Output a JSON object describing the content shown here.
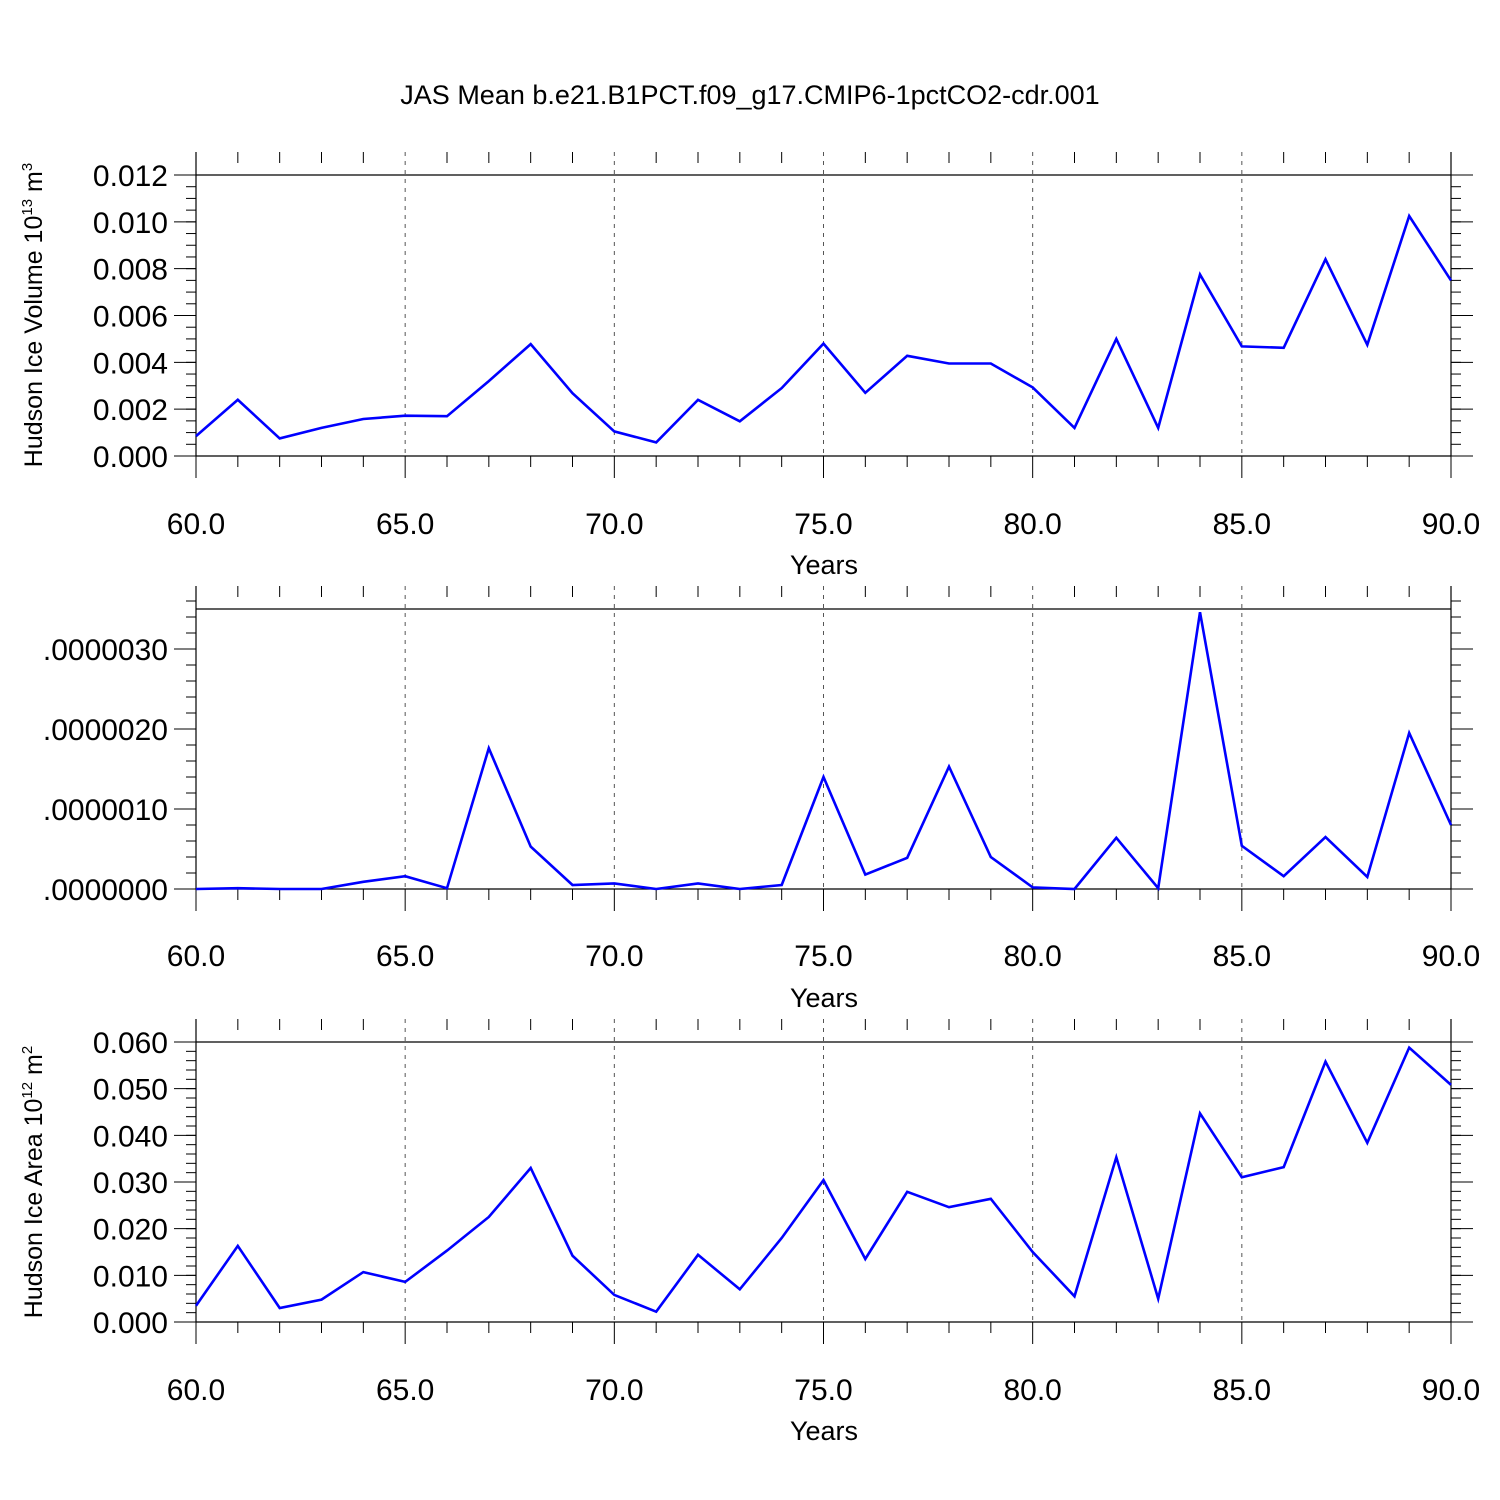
{
  "figure_title": "JAS Mean b.e21.B1PCT.f09_g17.CMIP6-1pctCO2-cdr.001",
  "colors": {
    "series": "#0000ff",
    "axes": "#000000",
    "grid": "#555555"
  },
  "chart_data": [
    {
      "type": "line",
      "xlabel": "Years",
      "ylabel": "Hudson Ice Volume 10",
      "ylabel_sup": "13",
      "ylabel_unit": " m",
      "ylabel_unit_sup": "3",
      "xlim": [
        60,
        90
      ],
      "ylim": [
        0.0,
        0.012
      ],
      "x_ticks": [
        60,
        65,
        70,
        75,
        80,
        85,
        90
      ],
      "x_tick_labels": [
        "60.0",
        "65.0",
        "70.0",
        "75.0",
        "80.0",
        "85.0",
        "90.0"
      ],
      "y_ticks": [
        0.0,
        0.002,
        0.004,
        0.006,
        0.008,
        0.01,
        0.012
      ],
      "y_tick_labels": [
        "0.000",
        "0.002",
        "0.004",
        "0.006",
        "0.008",
        "0.010",
        "0.012"
      ],
      "x_minor_step": 1,
      "y_minor_step": 0.0005,
      "grid": "vertical dashed at major x ticks",
      "x": [
        60,
        61,
        62,
        63,
        64,
        65,
        66,
        67,
        68,
        69,
        70,
        71,
        72,
        73,
        74,
        75,
        76,
        77,
        78,
        79,
        80,
        81,
        82,
        83,
        84,
        85,
        86,
        87,
        88,
        89,
        90
      ],
      "values": [
        0.00085,
        0.0024,
        0.00075,
        0.0012,
        0.00158,
        0.00172,
        0.0017,
        0.0032,
        0.00478,
        0.00268,
        0.00105,
        0.00058,
        0.0024,
        0.00148,
        0.0029,
        0.0048,
        0.0027,
        0.00428,
        0.00395,
        0.00395,
        0.00293,
        0.0012,
        0.005,
        0.0012,
        0.00775,
        0.00468,
        0.00462,
        0.0084,
        0.00475,
        0.01025,
        0.0075
      ]
    },
    {
      "type": "line",
      "xlabel": "Years",
      "ylabel": "",
      "xlim": [
        60,
        90
      ],
      "ylim": [
        0.0,
        3.5e-06
      ],
      "x_ticks": [
        60,
        65,
        70,
        75,
        80,
        85,
        90
      ],
      "x_tick_labels": [
        "60.0",
        "65.0",
        "70.0",
        "75.0",
        "80.0",
        "85.0",
        "90.0"
      ],
      "y_ticks": [
        0.0,
        1e-06,
        2e-06,
        3e-06
      ],
      "y_tick_labels": [
        ".0000000",
        ".0000010",
        ".0000020",
        ".0000030"
      ],
      "x_minor_step": 1,
      "y_minor_step": 2e-07,
      "grid": "vertical dashed at major x ticks",
      "x": [
        60,
        61,
        62,
        63,
        64,
        65,
        66,
        67,
        68,
        69,
        70,
        71,
        72,
        73,
        74,
        75,
        76,
        77,
        78,
        79,
        80,
        81,
        82,
        83,
        84,
        85,
        86,
        87,
        88,
        89,
        90
      ],
      "values": [
        0.0,
        1e-08,
        0.0,
        0.0,
        9e-08,
        1.6e-07,
        1e-08,
        1.76e-06,
        5.3e-07,
        5e-08,
        7e-08,
        0.0,
        7e-08,
        0.0,
        5e-08,
        1.4e-06,
        1.8e-07,
        3.9e-07,
        1.53e-06,
        4e-07,
        2e-08,
        0.0,
        6.4e-07,
        1e-08,
        3.46e-06,
        5.4e-07,
        1.6e-07,
        6.5e-07,
        1.5e-07,
        1.95e-06,
        8e-07
      ]
    },
    {
      "type": "line",
      "xlabel": "Years",
      "ylabel": "Hudson Ice Area 10",
      "ylabel_sup": "12",
      "ylabel_unit": " m",
      "ylabel_unit_sup": "2",
      "xlim": [
        60,
        90
      ],
      "ylim": [
        0.0,
        0.06
      ],
      "x_ticks": [
        60,
        65,
        70,
        75,
        80,
        85,
        90
      ],
      "x_tick_labels": [
        "60.0",
        "65.0",
        "70.0",
        "75.0",
        "80.0",
        "85.0",
        "90.0"
      ],
      "y_ticks": [
        0.0,
        0.01,
        0.02,
        0.03,
        0.04,
        0.05,
        0.06
      ],
      "y_tick_labels": [
        "0.000",
        "0.010",
        "0.020",
        "0.030",
        "0.040",
        "0.050",
        "0.060"
      ],
      "x_minor_step": 1,
      "y_minor_step": 0.002,
      "grid": "vertical dashed at major x ticks",
      "x": [
        60,
        61,
        62,
        63,
        64,
        65,
        66,
        67,
        68,
        69,
        70,
        71,
        72,
        73,
        74,
        75,
        76,
        77,
        78,
        79,
        80,
        81,
        82,
        83,
        84,
        85,
        86,
        87,
        88,
        89,
        90
      ],
      "values": [
        0.0035,
        0.0163,
        0.003,
        0.0048,
        0.0107,
        0.0086,
        0.0153,
        0.0225,
        0.033,
        0.0142,
        0.0058,
        0.0022,
        0.0144,
        0.007,
        0.018,
        0.0304,
        0.0135,
        0.0279,
        0.0246,
        0.0264,
        0.015,
        0.0055,
        0.0353,
        0.005,
        0.0447,
        0.031,
        0.0332,
        0.0558,
        0.0384,
        0.0588,
        0.0508
      ]
    }
  ]
}
